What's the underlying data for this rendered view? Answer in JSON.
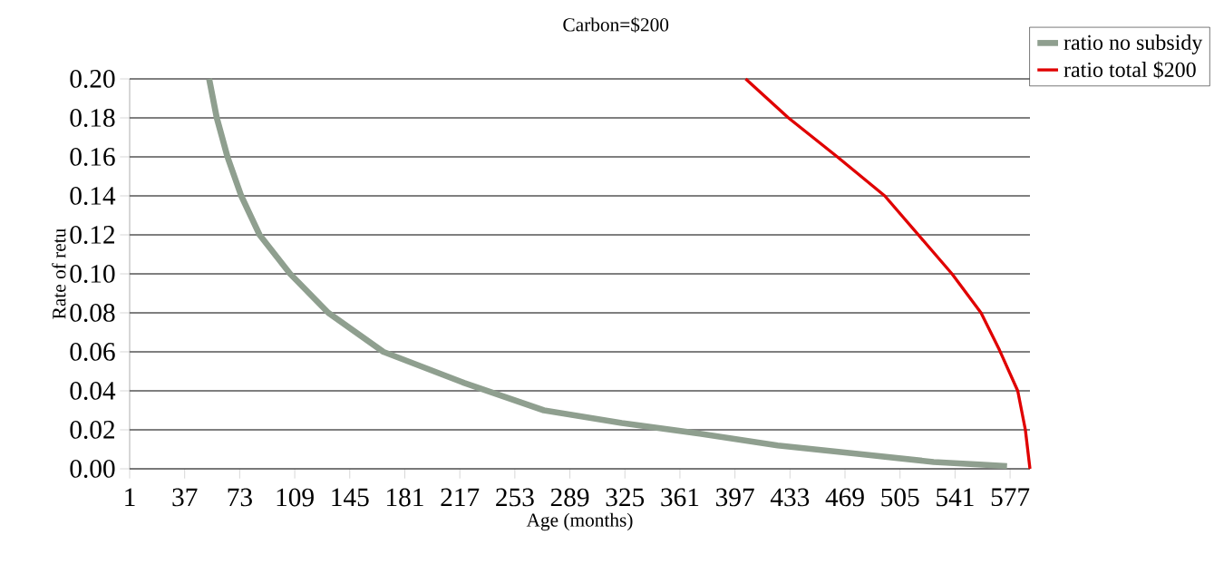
{
  "chart_data": {
    "type": "line",
    "title": "Carbon=$200",
    "xlabel": "Age (months)",
    "ylabel": "Rate of retu",
    "xlim": [
      1,
      590
    ],
    "xticks": [
      1,
      37,
      73,
      109,
      145,
      181,
      217,
      253,
      289,
      325,
      361,
      397,
      433,
      469,
      505,
      541,
      577
    ],
    "ylim": [
      0,
      0.2
    ],
    "yticks": [
      {
        "value": 0,
        "label": "0.00"
      },
      {
        "value": 0.02,
        "label": "0.02"
      },
      {
        "value": 0.04,
        "label": "0.04"
      },
      {
        "value": 0.06,
        "label": "0.06"
      },
      {
        "value": 0.08,
        "label": "0.08"
      },
      {
        "value": 0.1,
        "label": "0.10"
      },
      {
        "value": 0.12,
        "label": "0.12"
      },
      {
        "value": 0.14,
        "label": "0.14"
      },
      {
        "value": 0.16,
        "label": "0.16"
      },
      {
        "value": 0.18,
        "label": "0.18"
      },
      {
        "value": 0.2,
        "label": "0.20"
      }
    ],
    "grid": "y",
    "legend": "top right",
    "marker": "none",
    "line_style": "solid",
    "series": [
      {
        "name": "ratio no subsidy",
        "color": "#8f9f8f",
        "x": [
          53,
          58,
          65,
          74,
          86,
          106,
          131,
          167,
          220,
          272,
          323,
          374,
          425,
          476,
          527,
          575
        ],
        "values": [
          0.2,
          0.18,
          0.16,
          0.14,
          0.12,
          0.1,
          0.08,
          0.06,
          0.044,
          0.03,
          0.0235,
          0.018,
          0.012,
          0.0078,
          0.0035,
          0.0014
        ]
      },
      {
        "name": "ratio total $200",
        "color": "#e00000",
        "x": [
          404,
          432,
          464,
          495,
          517,
          539,
          558,
          570,
          582,
          587,
          590
        ],
        "values": [
          0.2,
          0.18,
          0.16,
          0.14,
          0.12,
          0.1,
          0.08,
          0.061,
          0.04,
          0.02,
          0
        ]
      }
    ]
  }
}
